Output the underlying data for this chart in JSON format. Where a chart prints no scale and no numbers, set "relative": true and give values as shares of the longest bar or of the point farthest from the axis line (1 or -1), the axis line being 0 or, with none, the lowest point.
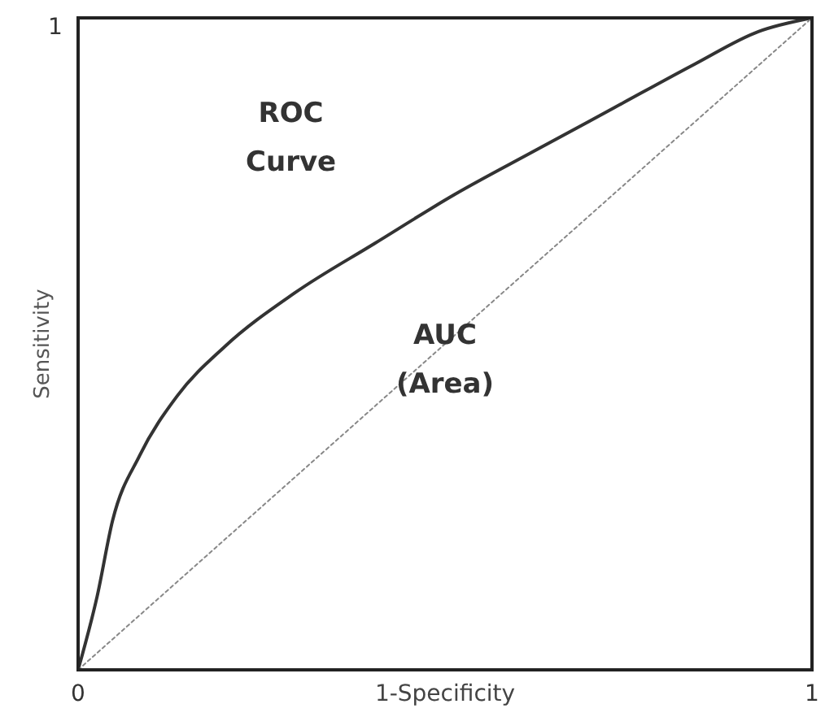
{
  "chart_data": {
    "type": "line",
    "xlabel": "1-Specificity",
    "ylabel": "Sensitivity",
    "xlim": [
      0,
      1
    ],
    "xticks": [
      0,
      1
    ],
    "relative": true,
    "marker": "none",
    "x": [
      0,
      0.026,
      0.047,
      0.084,
      0.135,
      0.2,
      0.295,
      0.404,
      0.513,
      0.622,
      0.731,
      0.84,
      0.927,
      1
    ],
    "series": [
      {
        "color": "#333333",
        "line_style": "solid",
        "values": [
          0,
          0.113,
          0.229,
          0.329,
          0.42,
          0.496,
          0.578,
          0.654,
          0.729,
          0.796,
          0.8625,
          0.929,
          0.979,
          1
        ]
      },
      {
        "color": "#888888",
        "line_style": "dotted",
        "x": [
          0,
          1
        ],
        "values": [
          0,
          1
        ]
      }
    ],
    "annotations": [
      "1",
      "ROC\nCurve",
      "AUC\n(Area)"
    ]
  }
}
